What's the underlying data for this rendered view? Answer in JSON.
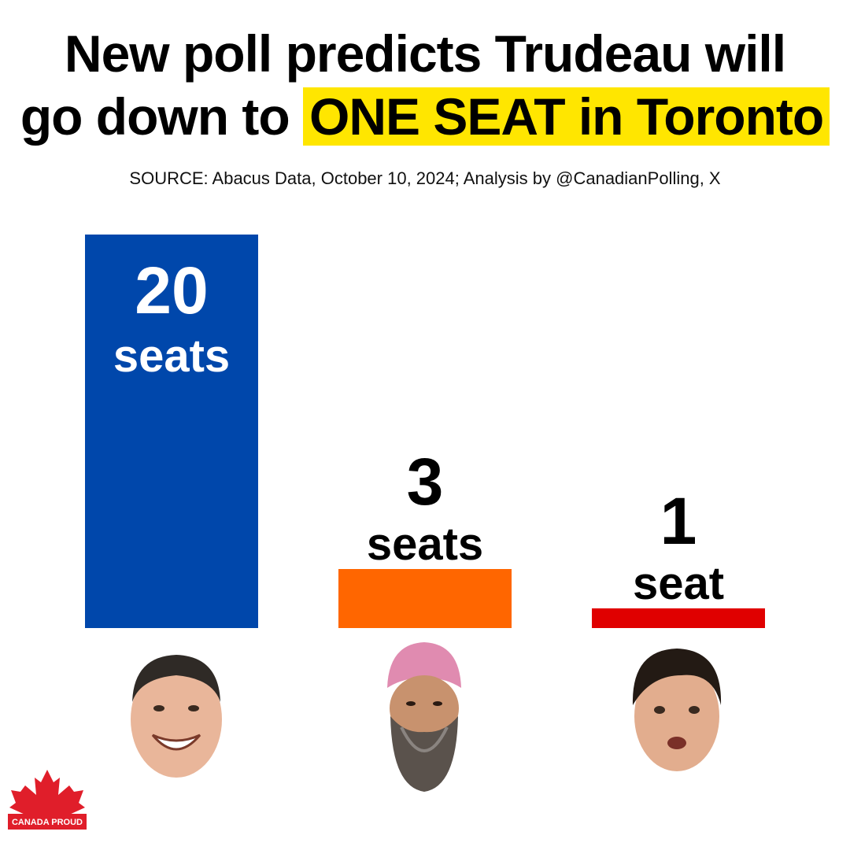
{
  "headline": {
    "line1": "New poll predicts Trudeau will",
    "line2_prefix": "go down to ",
    "line2_highlight": "ONE SEAT in Toronto"
  },
  "source": "SOURCE: Abacus Data, October 10, 2024; Analysis by @CanadianPolling, X",
  "colors": {
    "highlight": "#ffe600",
    "conservative": "#0047ab",
    "ndp": "#ff6600",
    "liberal": "#e00000"
  },
  "chart_data": {
    "type": "bar",
    "title": "New poll predicts Trudeau will go down to ONE SEAT in Toronto",
    "categories": [
      "",
      "",
      ""
    ],
    "values": [
      20,
      3,
      1
    ],
    "value_labels": [
      {
        "number": "20",
        "unit": "seats"
      },
      {
        "number": "3",
        "unit": "seats"
      },
      {
        "number": "1",
        "unit": "seat"
      }
    ],
    "bar_colors": [
      "#0047ab",
      "#ff6600",
      "#e00000"
    ],
    "label_position": [
      "inside",
      "above",
      "above"
    ],
    "xlabel": "",
    "ylabel": "",
    "ylim": [
      0,
      20
    ],
    "grid": false,
    "legend": "none"
  },
  "logo": {
    "text": "CANADA PROUD"
  }
}
